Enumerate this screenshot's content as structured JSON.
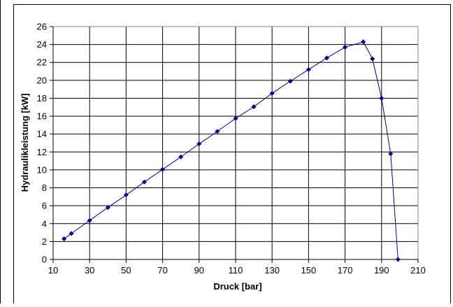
{
  "chart_data": {
    "type": "scatter",
    "title": "",
    "xlabel": "Druck [bar]",
    "ylabel": "Hydraulikleistung [kW]",
    "xlim": [
      10,
      210
    ],
    "ylim": [
      0,
      26
    ],
    "x_ticks": [
      10,
      30,
      50,
      70,
      90,
      110,
      130,
      150,
      170,
      190,
      210
    ],
    "y_ticks": [
      0,
      2,
      4,
      6,
      8,
      10,
      12,
      14,
      16,
      18,
      20,
      22,
      24,
      26
    ],
    "grid": true,
    "legend": "none",
    "series": [
      {
        "color": "#000080",
        "marker": "diamond",
        "line": true,
        "points": [
          [
            16,
            2.3
          ],
          [
            20,
            2.9
          ],
          [
            30,
            4.35
          ],
          [
            40,
            5.8
          ],
          [
            50,
            7.2
          ],
          [
            60,
            8.65
          ],
          [
            70,
            10.05
          ],
          [
            80,
            11.45
          ],
          [
            90,
            12.9
          ],
          [
            100,
            14.3
          ],
          [
            110,
            15.75
          ],
          [
            120,
            17.05
          ],
          [
            130,
            18.55
          ],
          [
            140,
            19.9
          ],
          [
            150,
            21.2
          ],
          [
            160,
            22.5
          ],
          [
            170,
            23.7
          ],
          [
            180,
            24.3
          ],
          [
            185,
            22.4
          ],
          [
            190,
            18.0
          ],
          [
            195,
            11.8
          ],
          [
            199,
            0
          ]
        ]
      }
    ]
  }
}
